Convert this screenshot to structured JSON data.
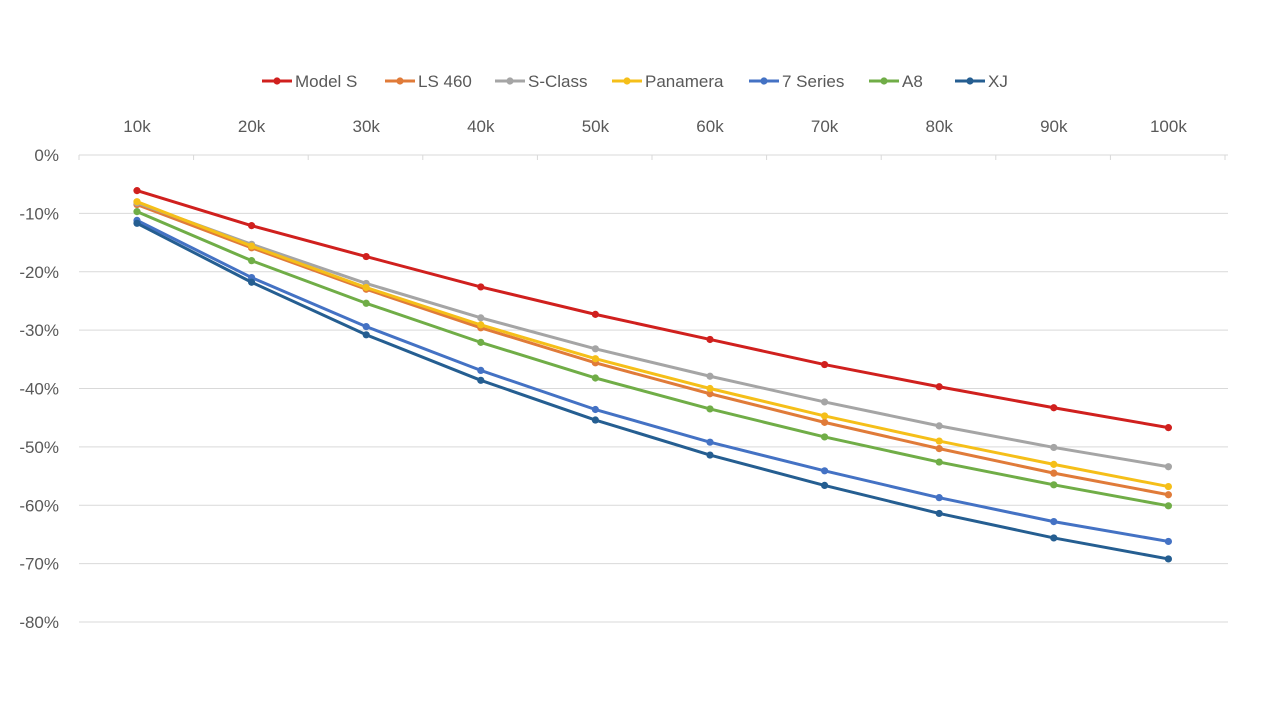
{
  "chart_data": {
    "type": "line",
    "title": "",
    "xlabel": "",
    "ylabel": "",
    "x_axis_position": "top",
    "legend_position": "top",
    "grid": "horizontal",
    "categories": [
      "10k",
      "20k",
      "30k",
      "40k",
      "50k",
      "60k",
      "70k",
      "80k",
      "90k",
      "100k"
    ],
    "y_ticks": [
      "0%",
      "-10%",
      "-20%",
      "-30%",
      "-40%",
      "-50%",
      "-60%",
      "-70%",
      "-80%"
    ],
    "ylim": [
      -80,
      0
    ],
    "series": [
      {
        "name": "Model S",
        "color": "#d0201e",
        "values": [
          -6.1,
          -12.1,
          -17.4,
          -22.6,
          -27.3,
          -31.6,
          -35.9,
          -39.7,
          -43.3,
          -46.7
        ]
      },
      {
        "name": "LS 460",
        "color": "#e07b39",
        "values": [
          -8.5,
          -15.9,
          -23.0,
          -29.6,
          -35.6,
          -40.9,
          -45.8,
          -50.3,
          -54.5,
          -58.2
        ]
      },
      {
        "name": "S-Class",
        "color": "#a5a5a5",
        "values": [
          -8.2,
          -15.3,
          -22.0,
          -27.9,
          -33.2,
          -37.9,
          -42.3,
          -46.4,
          -50.1,
          -53.4
        ]
      },
      {
        "name": "Panamera",
        "color": "#f5bf19",
        "values": [
          -8.0,
          -15.6,
          -22.7,
          -29.1,
          -34.9,
          -40.0,
          -44.7,
          -49.0,
          -53.0,
          -56.8
        ]
      },
      {
        "name": "7 Series",
        "color": "#4472c4",
        "values": [
          -11.2,
          -21.0,
          -29.4,
          -36.9,
          -43.6,
          -49.2,
          -54.1,
          -58.7,
          -62.8,
          -66.2
        ]
      },
      {
        "name": "A8",
        "color": "#70ad47",
        "values": [
          -9.7,
          -18.1,
          -25.4,
          -32.1,
          -38.2,
          -43.5,
          -48.3,
          -52.6,
          -56.5,
          -60.1
        ]
      },
      {
        "name": "XJ",
        "color": "#255e91",
        "values": [
          -11.7,
          -21.8,
          -30.8,
          -38.6,
          -45.4,
          -51.4,
          -56.6,
          -61.4,
          -65.6,
          -69.2
        ]
      }
    ]
  }
}
